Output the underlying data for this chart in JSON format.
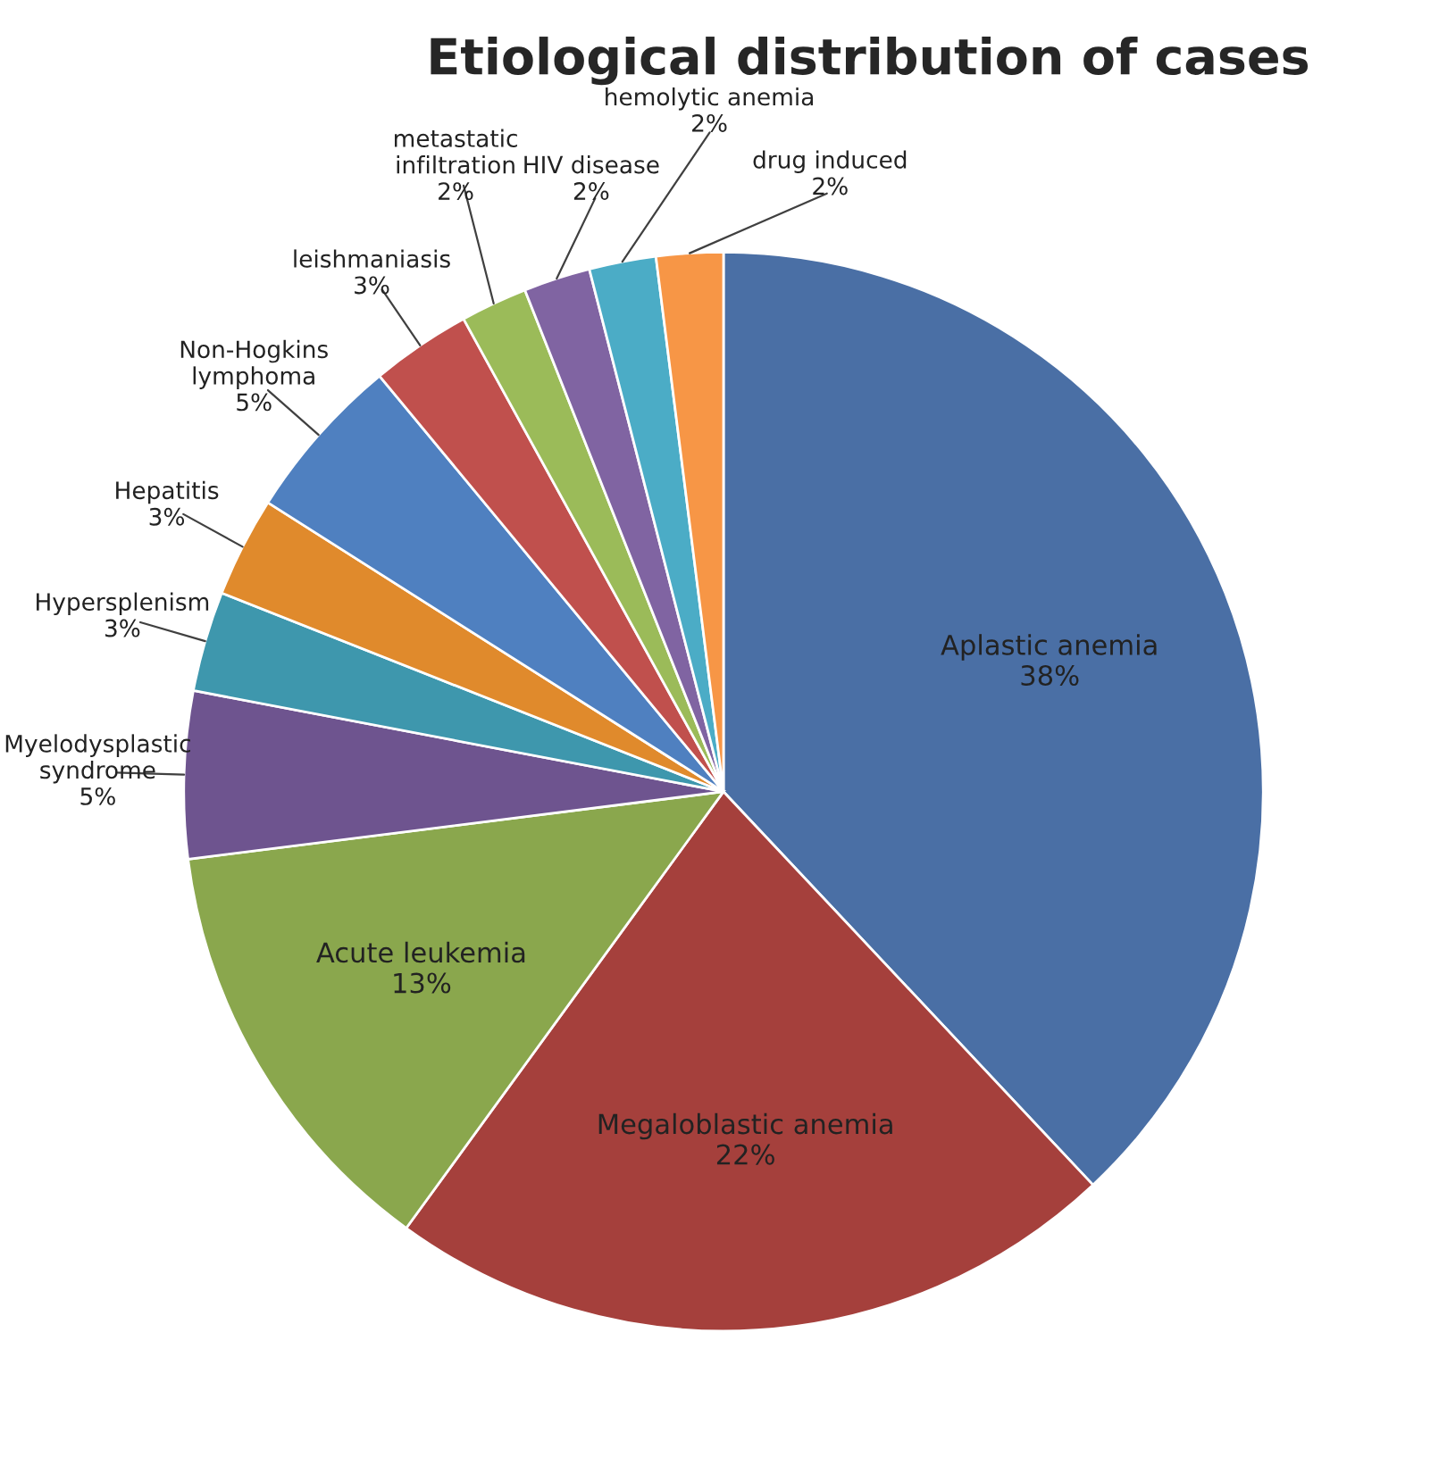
{
  "chart_data": {
    "type": "pie",
    "title": "Etiological distribution of cases",
    "categories": [
      "Aplastic anemia",
      "Megaloblastic anemia",
      "Acute leukemia",
      "Myelodysplastic syndrome",
      "Hypersplenism",
      "Hepatitis",
      "Non-Hogkins lymphoma",
      "leishmaniasis",
      "metastatic infiltration",
      "HIV disease",
      "hemolytic anemia",
      "drug induced"
    ],
    "values": [
      38,
      22,
      13,
      5,
      3,
      3,
      5,
      3,
      2,
      2,
      2,
      2
    ],
    "value_labels": [
      "38%",
      "22%",
      "13%",
      "5%",
      "3%",
      "3%",
      "5%",
      "3%",
      "2%",
      "2%",
      "2%",
      "2%"
    ],
    "colors": [
      "#4a6fa5",
      "#a5403c",
      "#8aa74d",
      "#6e548f",
      "#3e97ad",
      "#e08a2c",
      "#4f80c0",
      "#c0504d",
      "#9bbb59",
      "#8064a2",
      "#4bacc6",
      "#f79646"
    ],
    "legend": false
  }
}
